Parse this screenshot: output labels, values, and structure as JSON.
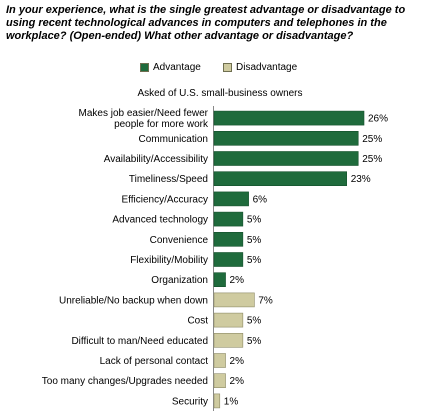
{
  "title": "In your experience, what is the single greatest advantage or disadvantage to using recent technological advances in computers and telephones in the workplace? (Open-ended) What other advantage or disadvantage?",
  "subtitle": "Asked of U.S. small-business owners",
  "colors": {
    "advantage": "#1f6b3c",
    "disadvantage": "#cfcba0"
  },
  "chart_data": {
    "type": "bar",
    "orientation": "horizontal",
    "legend_position": "top",
    "grid": false,
    "xlim": [
      0,
      26
    ],
    "series": [
      {
        "name": "Advantage",
        "color": "#1f6b3c"
      },
      {
        "name": "Disadvantage",
        "color": "#cfcba0"
      }
    ],
    "bars": [
      {
        "label": [
          "Makes job easier/Need fewer",
          "people for more work"
        ],
        "value": 26,
        "value_label": "26%",
        "series": 0
      },
      {
        "label": [
          "Communication"
        ],
        "value": 25,
        "value_label": "25%",
        "series": 0
      },
      {
        "label": [
          "Availability/Accessibility"
        ],
        "value": 25,
        "value_label": "25%",
        "series": 0
      },
      {
        "label": [
          "Timeliness/Speed"
        ],
        "value": 23,
        "value_label": "23%",
        "series": 0
      },
      {
        "label": [
          "Efficiency/Accuracy"
        ],
        "value": 6,
        "value_label": "6%",
        "series": 0
      },
      {
        "label": [
          "Advanced technology"
        ],
        "value": 5,
        "value_label": "5%",
        "series": 0
      },
      {
        "label": [
          "Convenience"
        ],
        "value": 5,
        "value_label": "5%",
        "series": 0
      },
      {
        "label": [
          "Flexibility/Mobility"
        ],
        "value": 5,
        "value_label": "5%",
        "series": 0
      },
      {
        "label": [
          "Organization"
        ],
        "value": 2,
        "value_label": "2%",
        "series": 0
      },
      {
        "label": [
          "Unreliable/No backup when down"
        ],
        "value": 7,
        "value_label": "7%",
        "series": 1
      },
      {
        "label": [
          "Cost"
        ],
        "value": 5,
        "value_label": "5%",
        "series": 1
      },
      {
        "label": [
          "Difficult to man/Need educated"
        ],
        "value": 5,
        "value_label": "5%",
        "series": 1
      },
      {
        "label": [
          "Lack of personal contact"
        ],
        "value": 2,
        "value_label": "2%",
        "series": 1
      },
      {
        "label": [
          "Too many changes/Upgrades needed"
        ],
        "value": 2,
        "value_label": "2%",
        "series": 1
      },
      {
        "label": [
          "Security"
        ],
        "value": 1,
        "value_label": "1%",
        "series": 1
      }
    ]
  }
}
